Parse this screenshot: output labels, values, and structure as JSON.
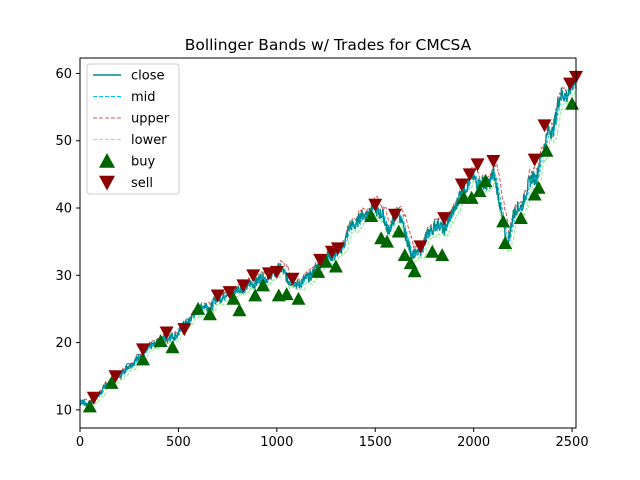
{
  "chart_data": {
    "type": "line",
    "title": "Bollinger Bands w/ Trades for CMCSA",
    "xlabel": "",
    "ylabel": "",
    "xlim": [
      0,
      2520
    ],
    "ylim": [
      7.3,
      62.3
    ],
    "xticks": [
      0,
      500,
      1000,
      1500,
      2000,
      2500
    ],
    "yticks": [
      10,
      20,
      30,
      40,
      50,
      60
    ],
    "grid": false,
    "legend_position": "top-left",
    "series": [
      {
        "name": "close",
        "style": "solid",
        "color": "#008b8b"
      },
      {
        "name": "mid",
        "style": "dashed",
        "color": "#00bfff"
      },
      {
        "name": "upper",
        "style": "dashed",
        "color": "#cd5c5c"
      },
      {
        "name": "lower",
        "style": "dashed",
        "color": "#90ee90"
      },
      {
        "name": "buy",
        "style": "marker",
        "marker": "triangle-up",
        "color": "#006400"
      },
      {
        "name": "sell",
        "style": "marker",
        "marker": "triangle-down",
        "color": "#8b0000"
      }
    ],
    "close_anchors": [
      [
        0,
        11.2
      ],
      [
        50,
        10.8
      ],
      [
        80,
        11.8
      ],
      [
        130,
        13.6
      ],
      [
        170,
        14.3
      ],
      [
        230,
        16.0
      ],
      [
        300,
        17.8
      ],
      [
        360,
        19.4
      ],
      [
        420,
        20.6
      ],
      [
        480,
        20.9
      ],
      [
        530,
        22.5
      ],
      [
        580,
        24.2
      ],
      [
        620,
        25.4
      ],
      [
        660,
        25.2
      ],
      [
        700,
        26.6
      ],
      [
        760,
        27.4
      ],
      [
        800,
        27.8
      ],
      [
        860,
        28.5
      ],
      [
        920,
        29.5
      ],
      [
        980,
        30.0
      ],
      [
        1010,
        31.3
      ],
      [
        1060,
        29.3
      ],
      [
        1100,
        28.6
      ],
      [
        1150,
        29.4
      ],
      [
        1200,
        30.9
      ],
      [
        1240,
        32.5
      ],
      [
        1290,
        33.1
      ],
      [
        1320,
        33.4
      ],
      [
        1370,
        37.0
      ],
      [
        1420,
        38.3
      ],
      [
        1460,
        39.5
      ],
      [
        1500,
        40.2
      ],
      [
        1540,
        38.6
      ],
      [
        1560,
        37.0
      ],
      [
        1590,
        37.6
      ],
      [
        1620,
        39.7
      ],
      [
        1650,
        36.0
      ],
      [
        1680,
        33.8
      ],
      [
        1710,
        32.8
      ],
      [
        1750,
        35.0
      ],
      [
        1800,
        37.5
      ],
      [
        1850,
        37.0
      ],
      [
        1880,
        38.3
      ],
      [
        1920,
        41.2
      ],
      [
        1950,
        43.0
      ],
      [
        1990,
        44.5
      ],
      [
        2020,
        44.0
      ],
      [
        2060,
        43.2
      ],
      [
        2100,
        45.0
      ],
      [
        2130,
        41.5
      ],
      [
        2150,
        37.5
      ],
      [
        2170,
        34.3
      ],
      [
        2200,
        39.0
      ],
      [
        2240,
        40.3
      ],
      [
        2270,
        42.5
      ],
      [
        2300,
        45.0
      ],
      [
        2320,
        44.3
      ],
      [
        2350,
        48.5
      ],
      [
        2380,
        51.5
      ],
      [
        2400,
        51.0
      ],
      [
        2430,
        56.0
      ],
      [
        2460,
        56.8
      ],
      [
        2490,
        57.5
      ],
      [
        2520,
        58.8
      ]
    ],
    "buy_signals": [
      [
        50,
        10.5
      ],
      [
        160,
        14.0
      ],
      [
        320,
        17.5
      ],
      [
        410,
        20.2
      ],
      [
        470,
        19.3
      ],
      [
        600,
        25.0
      ],
      [
        660,
        24.2
      ],
      [
        780,
        26.5
      ],
      [
        810,
        24.8
      ],
      [
        890,
        27.0
      ],
      [
        930,
        28.5
      ],
      [
        1010,
        27.0
      ],
      [
        1050,
        27.2
      ],
      [
        1110,
        26.5
      ],
      [
        1210,
        30.5
      ],
      [
        1250,
        32.0
      ],
      [
        1300,
        31.3
      ],
      [
        1480,
        38.8
      ],
      [
        1530,
        35.5
      ],
      [
        1560,
        35.0
      ],
      [
        1620,
        36.5
      ],
      [
        1650,
        33.0
      ],
      [
        1680,
        31.8
      ],
      [
        1700,
        30.6
      ],
      [
        1790,
        33.5
      ],
      [
        1840,
        33.0
      ],
      [
        1950,
        41.5
      ],
      [
        1990,
        41.5
      ],
      [
        2030,
        42.5
      ],
      [
        2060,
        44.0
      ],
      [
        2150,
        38.0
      ],
      [
        2160,
        34.8
      ],
      [
        2240,
        38.5
      ],
      [
        2310,
        42.0
      ],
      [
        2330,
        43.0
      ],
      [
        2370,
        48.5
      ],
      [
        2500,
        55.5
      ]
    ],
    "sell_signals": [
      [
        70,
        11.8
      ],
      [
        180,
        15.0
      ],
      [
        320,
        19.0
      ],
      [
        440,
        21.5
      ],
      [
        530,
        22.0
      ],
      [
        700,
        27.0
      ],
      [
        760,
        27.5
      ],
      [
        830,
        28.5
      ],
      [
        880,
        30.0
      ],
      [
        960,
        30.3
      ],
      [
        1000,
        30.5
      ],
      [
        1080,
        29.5
      ],
      [
        1220,
        32.3
      ],
      [
        1280,
        33.5
      ],
      [
        1310,
        34.0
      ],
      [
        1500,
        40.5
      ],
      [
        1600,
        39.0
      ],
      [
        1730,
        34.3
      ],
      [
        1850,
        38.5
      ],
      [
        1940,
        43.5
      ],
      [
        1980,
        45.0
      ],
      [
        2020,
        46.5
      ],
      [
        2100,
        47.0
      ],
      [
        2310,
        47.2
      ],
      [
        2360,
        52.3
      ],
      [
        2490,
        58.5
      ],
      [
        2520,
        59.5
      ]
    ]
  }
}
